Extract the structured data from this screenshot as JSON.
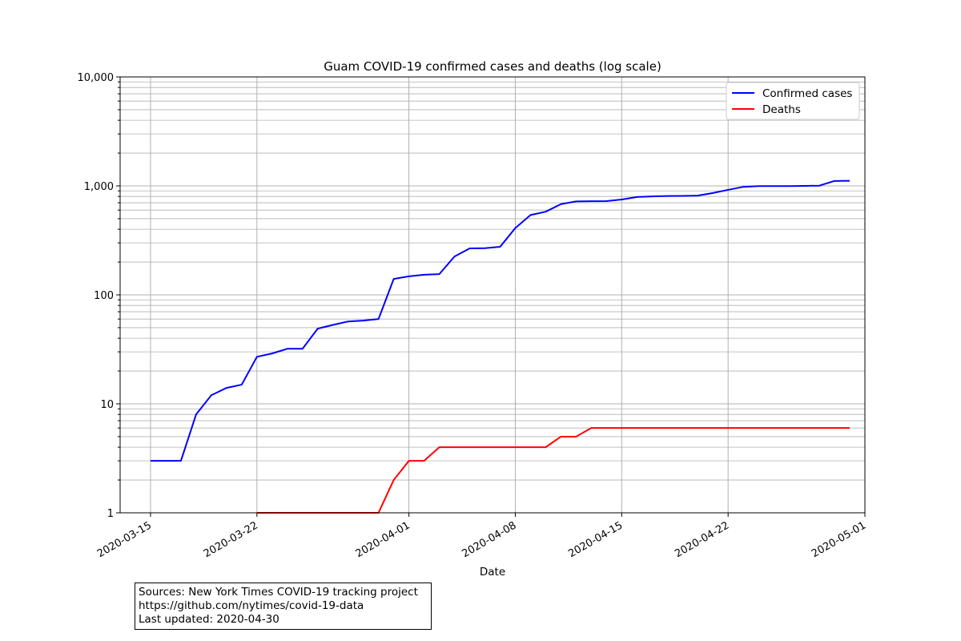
{
  "chart_data": {
    "type": "line",
    "title": "Guam COVID-19 confirmed cases and deaths (log scale)",
    "xlabel": "Date",
    "ylabel": "",
    "y_scale": "log",
    "ylim": [
      1,
      10000
    ],
    "xlim": [
      "2020-03-13",
      "2020-05-01"
    ],
    "x_ticks": [
      "2020-03-15",
      "2020-03-22",
      "2020-04-01",
      "2020-04-08",
      "2020-04-15",
      "2020-04-22",
      "2020-05-01"
    ],
    "y_ticks": [
      1,
      10,
      100,
      1000,
      10000
    ],
    "y_tick_labels": [
      "1",
      "10",
      "100",
      "1,000",
      "10,000"
    ],
    "grid": true,
    "legend_position": "top-right",
    "series": [
      {
        "name": "Confirmed cases",
        "color": "#0000ff",
        "points": [
          [
            "2020-03-15",
            3
          ],
          [
            "2020-03-16",
            3
          ],
          [
            "2020-03-17",
            3
          ],
          [
            "2020-03-18",
            8
          ],
          [
            "2020-03-19",
            12
          ],
          [
            "2020-03-20",
            14
          ],
          [
            "2020-03-21",
            15
          ],
          [
            "2020-03-22",
            27
          ],
          [
            "2020-03-23",
            29
          ],
          [
            "2020-03-24",
            32
          ],
          [
            "2020-03-25",
            32
          ],
          [
            "2020-03-26",
            49
          ],
          [
            "2020-03-27",
            53
          ],
          [
            "2020-03-28",
            57
          ],
          [
            "2020-03-29",
            58
          ],
          [
            "2020-03-30",
            60
          ],
          [
            "2020-03-31",
            140
          ],
          [
            "2020-04-01",
            148
          ],
          [
            "2020-04-02",
            153
          ],
          [
            "2020-04-03",
            155
          ],
          [
            "2020-04-04",
            225
          ],
          [
            "2020-04-05",
            267
          ],
          [
            "2020-04-06",
            268
          ],
          [
            "2020-04-07",
            276
          ],
          [
            "2020-04-08",
            410
          ],
          [
            "2020-04-09",
            540
          ],
          [
            "2020-04-10",
            580
          ],
          [
            "2020-04-11",
            680
          ],
          [
            "2020-04-12",
            720
          ],
          [
            "2020-04-13",
            723
          ],
          [
            "2020-04-14",
            725
          ],
          [
            "2020-04-15",
            750
          ],
          [
            "2020-04-16",
            790
          ],
          [
            "2020-04-17",
            800
          ],
          [
            "2020-04-18",
            808
          ],
          [
            "2020-04-19",
            810
          ],
          [
            "2020-04-20",
            815
          ],
          [
            "2020-04-21",
            860
          ],
          [
            "2020-04-22",
            920
          ],
          [
            "2020-04-23",
            980
          ],
          [
            "2020-04-24",
            995
          ],
          [
            "2020-04-25",
            995
          ],
          [
            "2020-04-26",
            995
          ],
          [
            "2020-04-27",
            1000
          ],
          [
            "2020-04-28",
            1005
          ],
          [
            "2020-04-29",
            1110
          ],
          [
            "2020-04-30",
            1115
          ]
        ]
      },
      {
        "name": "Deaths",
        "color": "#ff0000",
        "points": [
          [
            "2020-03-22",
            1
          ],
          [
            "2020-03-23",
            1
          ],
          [
            "2020-03-24",
            1
          ],
          [
            "2020-03-25",
            1
          ],
          [
            "2020-03-26",
            1
          ],
          [
            "2020-03-27",
            1
          ],
          [
            "2020-03-28",
            1
          ],
          [
            "2020-03-29",
            1
          ],
          [
            "2020-03-30",
            1
          ],
          [
            "2020-03-31",
            2
          ],
          [
            "2020-04-01",
            3
          ],
          [
            "2020-04-02",
            3
          ],
          [
            "2020-04-03",
            4
          ],
          [
            "2020-04-04",
            4
          ],
          [
            "2020-04-05",
            4
          ],
          [
            "2020-04-06",
            4
          ],
          [
            "2020-04-07",
            4
          ],
          [
            "2020-04-08",
            4
          ],
          [
            "2020-04-09",
            4
          ],
          [
            "2020-04-10",
            4
          ],
          [
            "2020-04-11",
            5
          ],
          [
            "2020-04-12",
            5
          ],
          [
            "2020-04-13",
            6
          ],
          [
            "2020-04-14",
            6
          ],
          [
            "2020-04-15",
            6
          ],
          [
            "2020-04-16",
            6
          ],
          [
            "2020-04-17",
            6
          ],
          [
            "2020-04-18",
            6
          ],
          [
            "2020-04-19",
            6
          ],
          [
            "2020-04-20",
            6
          ],
          [
            "2020-04-21",
            6
          ],
          [
            "2020-04-22",
            6
          ],
          [
            "2020-04-23",
            6
          ],
          [
            "2020-04-24",
            6
          ],
          [
            "2020-04-25",
            6
          ],
          [
            "2020-04-26",
            6
          ],
          [
            "2020-04-27",
            6
          ],
          [
            "2020-04-28",
            6
          ],
          [
            "2020-04-29",
            6
          ],
          [
            "2020-04-30",
            6
          ]
        ]
      }
    ]
  },
  "sources": {
    "line1": "Sources: New York Times COVID-19 tracking project",
    "line2": "https://github.com/nytimes/covid-19-data",
    "line3": "Last updated: 2020-04-30"
  }
}
